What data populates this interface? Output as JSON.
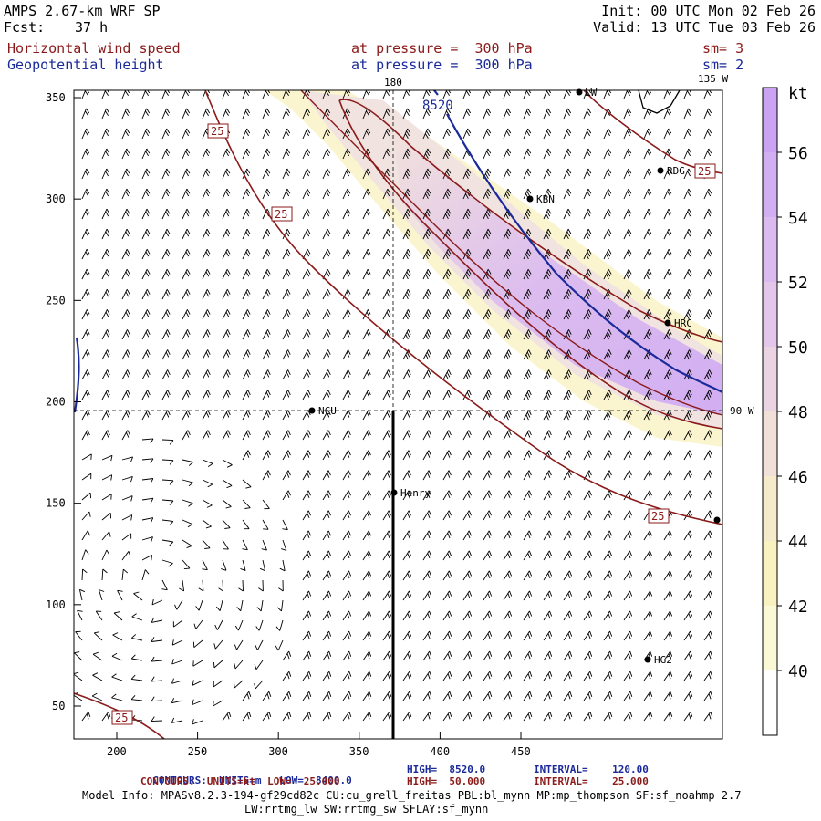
{
  "header": {
    "title_left": "AMPS 2.67-km WRF SP",
    "fcst_label": "Fcst:",
    "fcst_value": "37 h",
    "init": "Init: 00 UTC Mon 02 Feb 26",
    "valid": "Valid: 13 UTC Tue 03 Feb 26",
    "field1_name": "Horizontal wind speed",
    "field1_level": "at pressure =  300 hPa",
    "field1_sm": "sm= 3",
    "field2_name": "Geopotential height",
    "field2_level": "at pressure =  300 hPa",
    "field2_sm": "sm= 2"
  },
  "map": {
    "x_ticks": [
      "200",
      "250",
      "300",
      "350",
      "400",
      "450"
    ],
    "y_ticks": [
      "350",
      "300",
      "250",
      "200",
      "150",
      "100",
      "50"
    ],
    "lon_labels": {
      "top_180": "180",
      "top_135w": "135 W",
      "right_90w": "90 W"
    },
    "height_contour_label": "8520",
    "speed_contour_labels": [
      "25",
      "25",
      "25",
      "25"
    ],
    "stations": [
      "LW",
      "RDG",
      "KBN",
      "HRC",
      "NCU",
      "Henry",
      "HG2"
    ],
    "colors": {
      "height_contour": "#1a2a9a",
      "speed_contour": "#8b1a1a",
      "shade_low": "#fbf6cf",
      "shade_high": "#d7b6f0"
    }
  },
  "colorbar": {
    "unit": "kt",
    "labels": [
      "56",
      "54",
      "52",
      "50",
      "48",
      "46",
      "44",
      "42",
      "40"
    ],
    "colors": [
      "#ffffff",
      "#fbf8d6",
      "#f9f1c0",
      "#f5ebcb",
      "#f0e0d8",
      "#ead3e3",
      "#e3c6ea",
      "#dbbaef",
      "#d2aef2",
      "#caa4f2"
    ]
  },
  "footer": {
    "line1_a": "CONTOURS:  UNITS=m   LOW=  8400.0",
    "line1_b": "HIGH=  8520.0",
    "line1_c": "INTERVAL=    120.00",
    "line2_a": "CONTOURS:  UNITS=kt  LOW=  25.000",
    "line2_b": "HIGH=  50.000",
    "line2_c": "INTERVAL=    25.000",
    "model_info1": "Model Info: MPASv8.2.3-194-gf29cd82c CU:cu_grell_freitas PBL:bl_mynn MP:mp_thompson SF:sf_noahmp 2.7",
    "model_info2": "LW:rrtmg_lw SW:rrtmg_sw SFLAY:sf_mynn"
  }
}
